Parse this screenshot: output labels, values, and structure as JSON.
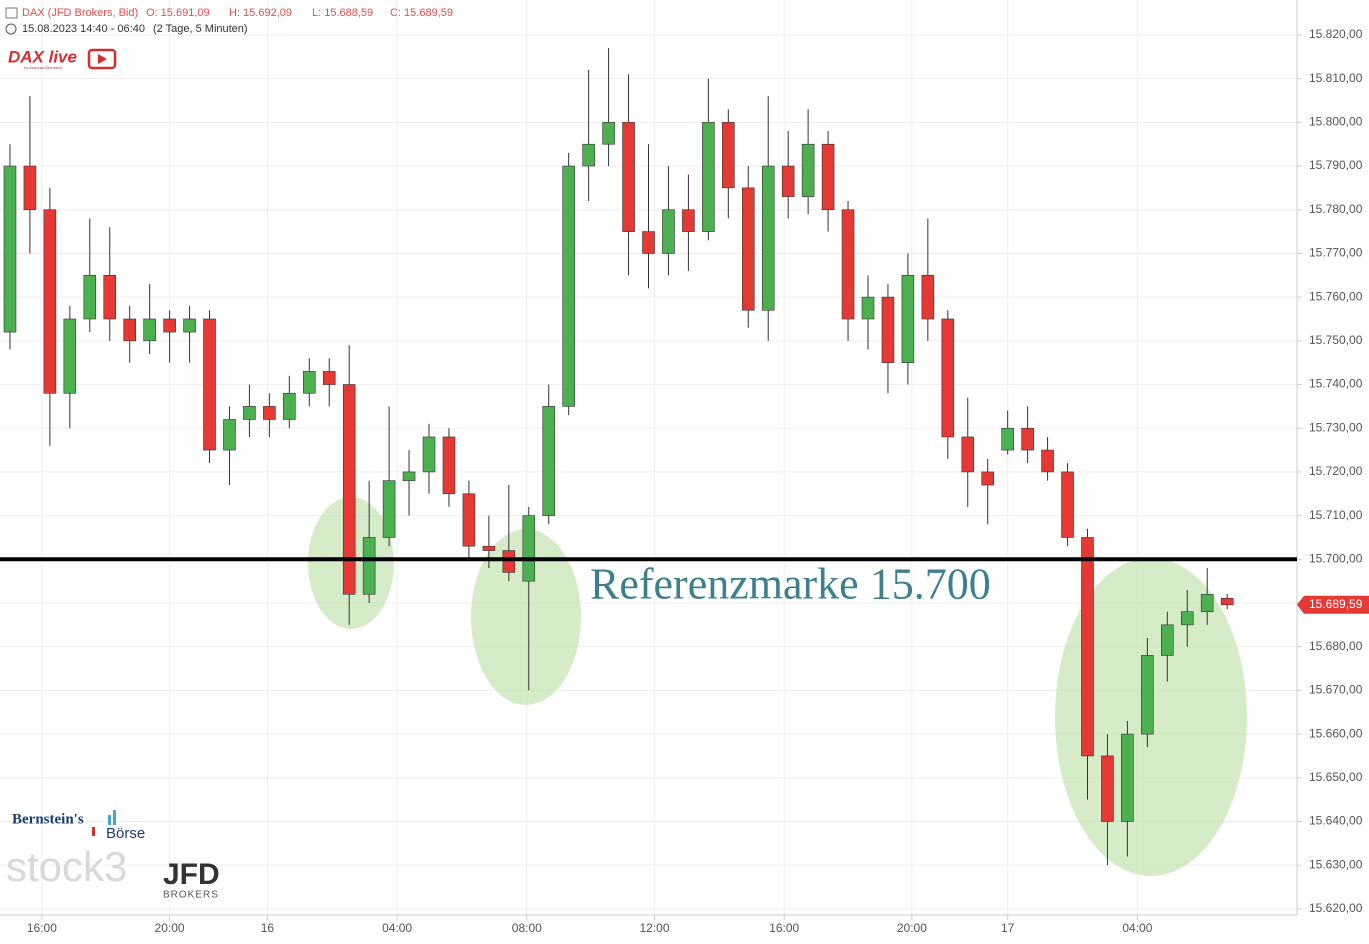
{
  "header": {
    "instrument": "DAX (JFD Brokers, Bid)",
    "open": "O: 15.691,09",
    "high": "H: 15.692,09",
    "low": "L: 15.688,59",
    "close": "C: 15.689,59",
    "range": "15.08.2023 14:40 - 06:40",
    "period": "(2 Tage, 5 Minuten)"
  },
  "logos": {
    "dax_live": "DAX live",
    "dax_live_by": "by Andreas Bernstein",
    "bernstein": "Bernstein's",
    "boerse": "Börse",
    "stock3": "stock3",
    "jfd": "JFD",
    "brokers": "BROKERS"
  },
  "chart_data": {
    "type": "candlestick",
    "up_color": "#4caf50",
    "down_color": "#e53935",
    "open": [
      15752,
      15790,
      15780,
      15738,
      15755,
      15765,
      15755,
      15750,
      15755,
      15752,
      15755,
      15725,
      15732,
      15735,
      15732,
      15738,
      15743,
      15740,
      15692,
      15705,
      15718,
      15720,
      15728,
      15715,
      15703,
      15702,
      15695,
      15710,
      15735,
      15790,
      15795,
      15800,
      15775,
      15770,
      15780,
      15775,
      15800,
      15785,
      15757,
      15790,
      15783,
      15795,
      15780,
      15755,
      15760,
      15745,
      15765,
      15755,
      15728,
      15720,
      15725,
      15730,
      15725,
      15720,
      15705,
      15655,
      15640,
      15660,
      15678,
      15685,
      15688,
      15691.09
    ],
    "high": [
      15795,
      15806,
      15785,
      15758,
      15778,
      15776,
      15758,
      15763,
      15757,
      15758,
      15757,
      15735,
      15740,
      15738,
      15742,
      15746,
      15746,
      15749,
      15718,
      15735,
      15725,
      15731,
      15730,
      15718,
      15710,
      15717,
      15712,
      15740,
      15793,
      15812,
      15817,
      15811,
      15795,
      15790,
      15788,
      15810,
      15803,
      15790,
      15806,
      15798,
      15803,
      15798,
      15782,
      15765,
      15763,
      15770,
      15778,
      15757,
      15737,
      15723,
      15734,
      15735,
      15728,
      15722,
      15707,
      15660,
      15663,
      15682,
      15688,
      15693,
      15698,
      15692.09
    ],
    "low": [
      15748,
      15770,
      15726,
      15730,
      15752,
      15750,
      15745,
      15747,
      15745,
      15745,
      15722,
      15717,
      15728,
      15728,
      15730,
      15735,
      15735,
      15685,
      15690,
      15703,
      15710,
      15715,
      15712,
      15700,
      15698,
      15695,
      15670,
      15708,
      15733,
      15782,
      15790,
      15765,
      15762,
      15765,
      15766,
      15773,
      15778,
      15753,
      15750,
      15778,
      15779,
      15775,
      15750,
      15748,
      15738,
      15740,
      15750,
      15723,
      15712,
      15708,
      15724,
      15722,
      15718,
      15703,
      15645,
      15630,
      15632,
      15657,
      15672,
      15680,
      15685,
      15688.59
    ],
    "close": [
      15790,
      15780,
      15738,
      15755,
      15765,
      15755,
      15750,
      15755,
      15752,
      15755,
      15725,
      15732,
      15735,
      15732,
      15738,
      15743,
      15740,
      15692,
      15705,
      15718,
      15720,
      15728,
      15715,
      15703,
      15702,
      15697,
      15710,
      15735,
      15790,
      15795,
      15800,
      15775,
      15770,
      15780,
      15775,
      15800,
      15785,
      15757,
      15790,
      15783,
      15795,
      15780,
      15755,
      15760,
      15745,
      15765,
      15755,
      15728,
      15720,
      15717,
      15730,
      15725,
      15720,
      15705,
      15655,
      15640,
      15660,
      15678,
      15685,
      15688,
      15692,
      15689.59
    ],
    "last_label": "15.689,59",
    "xlim": [
      0,
      65
    ],
    "xticks": [
      {
        "value": 2.1,
        "label": "16:00"
      },
      {
        "value": 8.5,
        "label": "20:00"
      },
      {
        "value": 13.4,
        "label": "16"
      },
      {
        "value": 19.9,
        "label": "04:00"
      },
      {
        "value": 26.4,
        "label": "08:00"
      },
      {
        "value": 32.8,
        "label": "12:00"
      },
      {
        "value": 39.3,
        "label": "16:00"
      },
      {
        "value": 45.7,
        "label": "20:00"
      },
      {
        "value": 50.5,
        "label": "17"
      },
      {
        "value": 57.0,
        "label": "04:00"
      }
    ],
    "ylim": [
      15618.6,
      15828
    ],
    "yticks": [
      {
        "value": 15620,
        "label": "15.620,00"
      },
      {
        "value": 15630,
        "label": "15.630,00"
      },
      {
        "value": 15640,
        "label": "15.640,00"
      },
      {
        "value": 15650,
        "label": "15.650,00"
      },
      {
        "value": 15660,
        "label": "15.660,00"
      },
      {
        "value": 15670,
        "label": "15.670,00"
      },
      {
        "value": 15680,
        "label": "15.680,00"
      },
      {
        "value": 15690,
        "label": "15.690,00"
      },
      {
        "value": 15700,
        "label": "15.700,00"
      },
      {
        "value": 15710,
        "label": "15.710,00"
      },
      {
        "value": 15720,
        "label": "15.720,00"
      },
      {
        "value": 15730,
        "label": "15.730,00"
      },
      {
        "value": 15740,
        "label": "15.740,00"
      },
      {
        "value": 15750,
        "label": "15.750,00"
      },
      {
        "value": 15760,
        "label": "15.760,00"
      },
      {
        "value": 15770,
        "label": "15.770,00"
      },
      {
        "value": 15780,
        "label": "15.780,00"
      },
      {
        "value": 15790,
        "label": "15.790,00"
      },
      {
        "value": 15800,
        "label": "15.800,00"
      },
      {
        "value": 15810,
        "label": "15.810,00"
      },
      {
        "value": 15820,
        "label": "15.820,00"
      }
    ],
    "grid": true,
    "reference": {
      "value": 15700,
      "label": "Referenzmarke 15.700",
      "color": "#000000",
      "label_color": "#3d7f8f"
    }
  }
}
